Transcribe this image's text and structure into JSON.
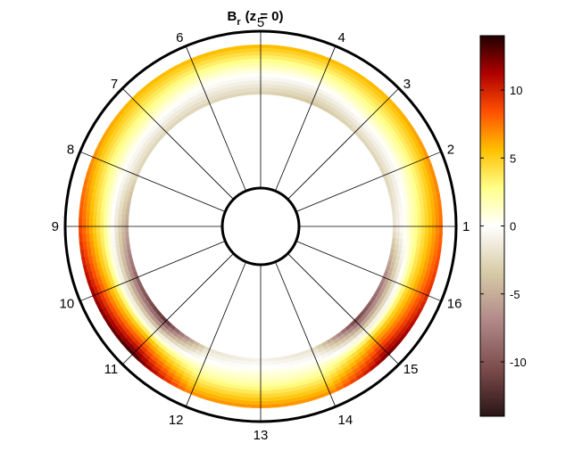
{
  "chart_data": {
    "type": "heatmap",
    "projection": "polar",
    "title": {
      "base": "B",
      "subscript": "r",
      "suffix": "(z = 0)"
    },
    "angular_ticks": [
      "1",
      "2",
      "3",
      "4",
      "5",
      "6",
      "7",
      "8",
      "9",
      "10",
      "11",
      "12",
      "13",
      "14",
      "15",
      "16"
    ],
    "annulus_color_pattern": {
      "description_by_theta_deg": [
        {
          "theta": 0,
          "outer": 8,
          "mid": 3,
          "inner": -2
        },
        {
          "theta": 22.5,
          "outer": 7,
          "mid": 2,
          "inner": -3
        },
        {
          "theta": 45,
          "outer": 6,
          "mid": 2,
          "inner": -3
        },
        {
          "theta": 67.5,
          "outer": 6,
          "mid": 1,
          "inner": -4
        },
        {
          "theta": 90,
          "outer": 6,
          "mid": 1,
          "inner": -3
        },
        {
          "theta": 112.5,
          "outer": 6,
          "mid": 1,
          "inner": -3
        },
        {
          "theta": 135,
          "outer": 6,
          "mid": 2,
          "inner": -3
        },
        {
          "theta": 157.5,
          "outer": 7,
          "mid": 2,
          "inner": -3
        },
        {
          "theta": 180,
          "outer": 9,
          "mid": 3,
          "inner": -6
        },
        {
          "theta": 202.5,
          "outer": 12,
          "mid": 4,
          "inner": -10
        },
        {
          "theta": 225,
          "outer": 14,
          "mid": 5,
          "inner": -13
        },
        {
          "theta": 247.5,
          "outer": 7,
          "mid": 2,
          "inner": -2
        },
        {
          "theta": 270,
          "outer": 7,
          "mid": 2,
          "inner": -1
        },
        {
          "theta": 292.5,
          "outer": 7,
          "mid": 2,
          "inner": -2
        },
        {
          "theta": 315,
          "outer": 13,
          "mid": 5,
          "inner": -12
        },
        {
          "theta": 337.5,
          "outer": 10,
          "mid": 4,
          "inner": -8
        }
      ]
    },
    "colorbar": {
      "range": [
        -14,
        14
      ],
      "ticks": [
        "10",
        "5",
        "0",
        "-5",
        "-10"
      ],
      "tick_values": [
        10,
        5,
        0,
        -5,
        -10
      ]
    }
  }
}
